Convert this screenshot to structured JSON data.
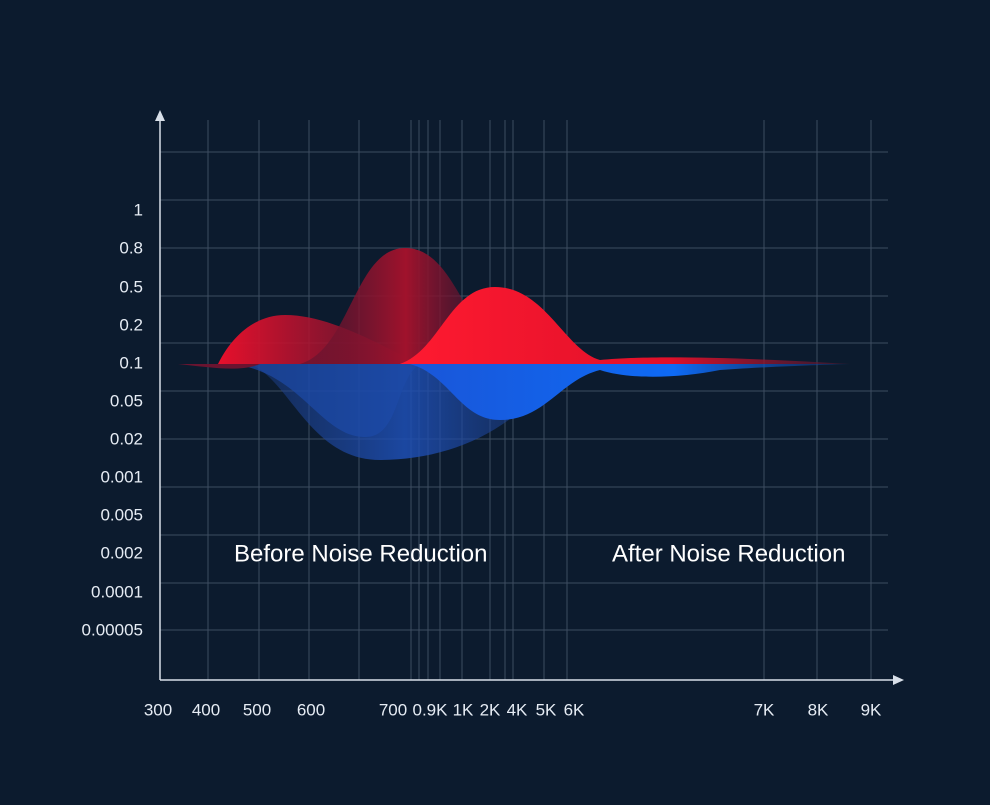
{
  "y_labels": [
    "1",
    "0.8",
    "0.5",
    "0.2",
    "0.1",
    "0.05",
    "0.02",
    "0.001",
    "0.005",
    "0.002",
    "0.0001",
    "0.00005"
  ],
  "x_labels": [
    "300",
    "400",
    "500",
    "600",
    "700",
    "0.9K",
    "1K",
    "2K",
    "4K",
    "5K",
    "6K",
    "7K",
    "8K",
    "9K"
  ],
  "annotations": [
    "Before Noise Reduction",
    "After Noise Reduction"
  ]
}
